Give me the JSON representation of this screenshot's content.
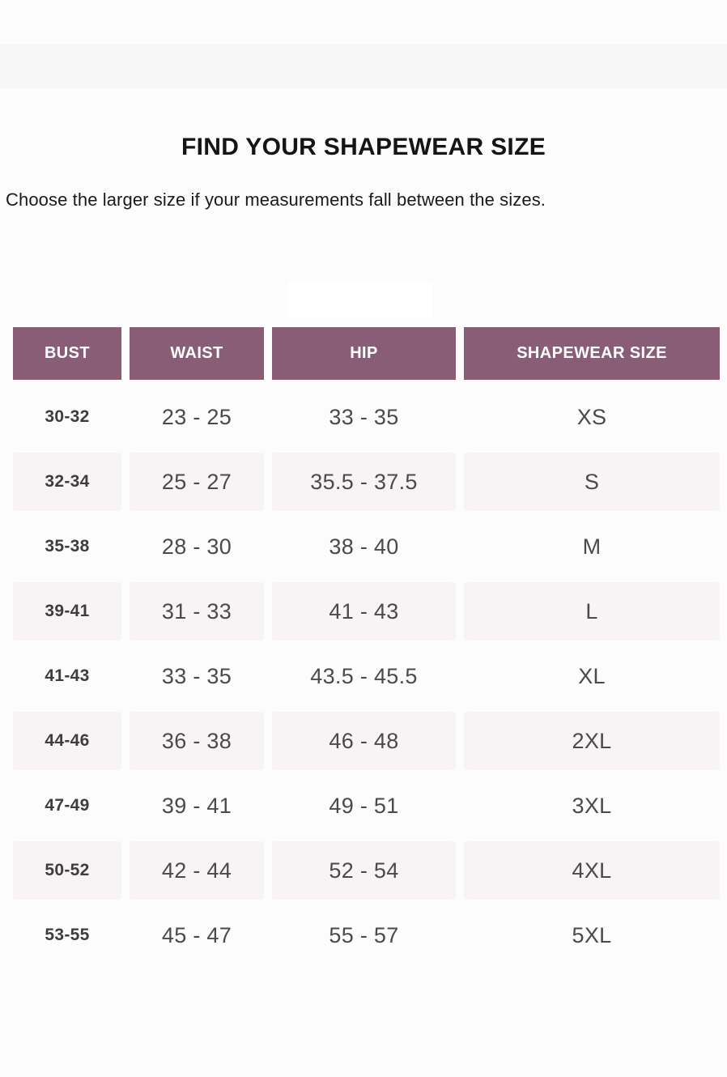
{
  "page": {
    "title": "FIND YOUR SHAPEWEAR SIZE",
    "subtitle": "Choose the larger size if your measurements fall between the sizes."
  },
  "colors": {
    "header_bg": "#8a5d77",
    "alt_row_bg": "#f8f3f5",
    "header_text": "#ffffff",
    "body_text": "#4a4a4a",
    "bust_text": "#3d3d3d"
  },
  "table": {
    "headers": [
      "BUST",
      "WAIST",
      "HIP",
      "SHAPEWEAR SIZE"
    ],
    "rows": [
      {
        "bust": "30-32",
        "waist": "23 - 25",
        "hip": "33 - 35",
        "size": "XS"
      },
      {
        "bust": "32-34",
        "waist": "25 - 27",
        "hip": "35.5 - 37.5",
        "size": "S"
      },
      {
        "bust": "35-38",
        "waist": "28 - 30",
        "hip": "38 - 40",
        "size": "M"
      },
      {
        "bust": "39-41",
        "waist": "31 - 33",
        "hip": "41 - 43",
        "size": "L"
      },
      {
        "bust": "41-43",
        "waist": "33 - 35",
        "hip": "43.5 - 45.5",
        "size": "XL"
      },
      {
        "bust": "44-46",
        "waist": "36 - 38",
        "hip": "46 - 48",
        "size": "2XL"
      },
      {
        "bust": "47-49",
        "waist": "39 - 41",
        "hip": "49 - 51",
        "size": "3XL"
      },
      {
        "bust": "50-52",
        "waist": "42 - 44",
        "hip": "52 - 54",
        "size": "4XL"
      },
      {
        "bust": "53-55",
        "waist": "45 - 47",
        "hip": "55 - 57",
        "size": "5XL"
      }
    ]
  }
}
